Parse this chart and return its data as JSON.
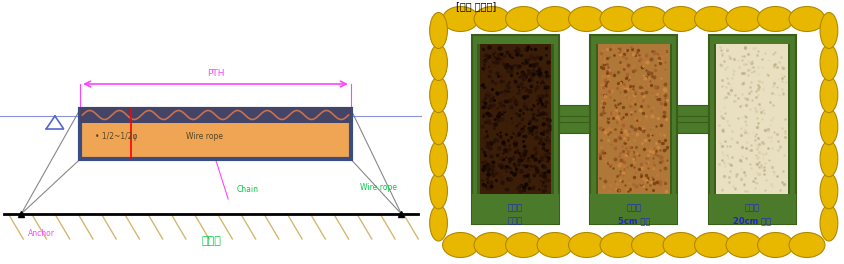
{
  "bg_color": "#ffffff",
  "left_panel": {
    "float_fill": "#f0a555",
    "float_border": "#3a4d80",
    "wave_color": "#c8724a",
    "pink": "#ff44ff",
    "blue": "#5566cc",
    "green": "#00cc44",
    "gray": "#888888",
    "label_PTH": "PTH",
    "label_chain": "Chain",
    "label_anchor": "Anchor",
    "label_wire_left": "• 1/2~1/2φ",
    "label_wire_right": "Wire rope",
    "label_wire_rope": "Wire rope",
    "label_ground": "수저면",
    "hatch_color": "#d4b870"
  },
  "right_panel": {
    "egg_color": "#e8b800",
    "egg_shadow": "#b08800",
    "label_top": "[보트 출입구]",
    "box1_label1": "퇴적층",
    "box1_label2": "미제거",
    "box2_label1": "퇴적층",
    "box2_label2": "5cm 제거",
    "box3_label1": "퇴적층",
    "box3_label2": "20cm 제거",
    "green_frame": "#4a7a2a",
    "green_light": "#5a8a35",
    "green_dark": "#3a5e1a",
    "connector_color": "#4a7a2a",
    "box1_fill": "#3a1e08",
    "box2_fill": "#b07838",
    "box3_fill": "#e8e0c0",
    "label_color": "#2222cc"
  }
}
